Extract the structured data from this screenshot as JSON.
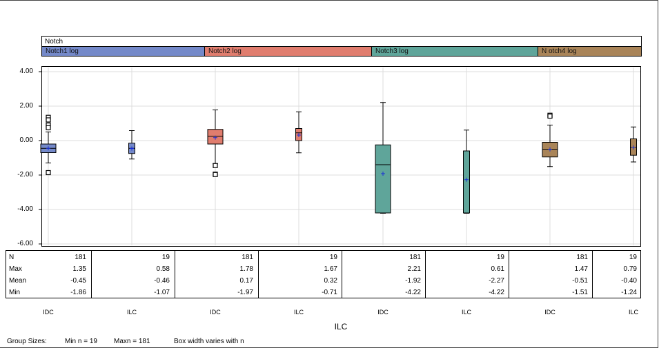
{
  "colors": {
    "notch1": "#7489c9",
    "notch2": "#e07d6e",
    "notch3": "#5fa59a",
    "notch4": "#a98458",
    "mean_marker": "#1a2fd6",
    "grid": "#dcdcdc"
  },
  "panel": {
    "title": "Notch",
    "strips": [
      {
        "label": "Notch1 log"
      },
      {
        "label": "Notch2 log"
      },
      {
        "label": "Notch3 log"
      },
      {
        "label": "N otch4 log"
      }
    ]
  },
  "stats_table": {
    "row_labels": [
      "N",
      "Max",
      "Mean",
      "Min"
    ],
    "columns": [
      {
        "N": "181",
        "Max": "1.35",
        "Mean": "-0.45",
        "Min": "-1.86"
      },
      {
        "N": "19",
        "Max": "0.58",
        "Mean": "-0.46",
        "Min": "-1.07"
      },
      {
        "N": "181",
        "Max": "1.78",
        "Mean": "0.17",
        "Min": "-1.97"
      },
      {
        "N": "19",
        "Max": "1.67",
        "Mean": "0.32",
        "Min": "-0.71"
      },
      {
        "N": "181",
        "Max": "2.21",
        "Mean": "-1.92",
        "Min": "-4.22"
      },
      {
        "N": "19",
        "Max": "0.61",
        "Mean": "-2.27",
        "Min": "-4.22"
      },
      {
        "N": "181",
        "Max": "1.47",
        "Mean": "-0.51",
        "Min": "-1.51"
      },
      {
        "N": "19",
        "Max": "0.79",
        "Mean": "-0.40",
        "Min": "-1.24"
      }
    ]
  },
  "footer": {
    "group_sizes": "Group Sizes:",
    "min_n": "Min n = 19",
    "max_n": "Maxn = 181",
    "note": "Box width varies with n"
  },
  "chart_data": {
    "type": "box",
    "xlabel": "ILC",
    "ylabel": "",
    "ylim": [
      -6,
      4
    ],
    "yticks": [
      "4.00",
      "2.00",
      "0.00",
      "-2.00",
      "-4.00",
      "-6.00"
    ],
    "grid": true,
    "categories": [
      "IDC",
      "ILC",
      "IDC",
      "ILC",
      "IDC",
      "ILC",
      "IDC",
      "ILC"
    ],
    "groups": [
      {
        "panel": "Notch1 log",
        "category": "IDC",
        "n": 181,
        "q1": -0.7,
        "median": -0.45,
        "q3": -0.2,
        "mean": -0.45,
        "whisker_low": -1.3,
        "whisker_high": 0.5,
        "outliers": [
          1.35,
          1.2,
          0.9,
          0.75,
          -1.86
        ],
        "color": "notch1"
      },
      {
        "panel": "Notch1 log",
        "category": "ILC",
        "n": 19,
        "q1": -0.75,
        "median": -0.45,
        "q3": -0.15,
        "mean": -0.46,
        "whisker_low": -1.07,
        "whisker_high": 0.58,
        "outliers": [],
        "color": "notch1"
      },
      {
        "panel": "Notch2 log",
        "category": "IDC",
        "n": 181,
        "q1": -0.2,
        "median": 0.25,
        "q3": 0.65,
        "mean": 0.17,
        "whisker_low": -1.35,
        "whisker_high": 1.78,
        "outliers": [
          -1.45,
          -1.95,
          -1.97
        ],
        "color": "notch2"
      },
      {
        "panel": "Notch2 log",
        "category": "ILC",
        "n": 19,
        "q1": 0.0,
        "median": 0.45,
        "q3": 0.7,
        "mean": 0.32,
        "whisker_low": -0.71,
        "whisker_high": 1.67,
        "outliers": [],
        "color": "notch2"
      },
      {
        "panel": "Notch3 log",
        "category": "IDC",
        "n": 181,
        "q1": -4.2,
        "median": -1.4,
        "q3": -0.25,
        "mean": -1.92,
        "whisker_low": -4.22,
        "whisker_high": 2.21,
        "outliers": [],
        "color": "notch3"
      },
      {
        "panel": "Notch3 log",
        "category": "ILC",
        "n": 19,
        "q1": -4.2,
        "median": -4.2,
        "q3": -0.6,
        "mean": -2.27,
        "whisker_low": -4.22,
        "whisker_high": 0.61,
        "outliers": [],
        "color": "notch3"
      },
      {
        "panel": "Notch4 log",
        "category": "IDC",
        "n": 181,
        "q1": -0.95,
        "median": -0.5,
        "q3": -0.1,
        "mean": -0.51,
        "whisker_low": -1.51,
        "whisker_high": 0.9,
        "outliers": [
          1.47,
          1.42
        ],
        "color": "notch4"
      },
      {
        "panel": "Notch4 log",
        "category": "ILC",
        "n": 19,
        "q1": -0.85,
        "median": -0.4,
        "q3": 0.1,
        "mean": -0.4,
        "whisker_low": -1.24,
        "whisker_high": 0.79,
        "outliers": [],
        "color": "notch4"
      }
    ]
  }
}
